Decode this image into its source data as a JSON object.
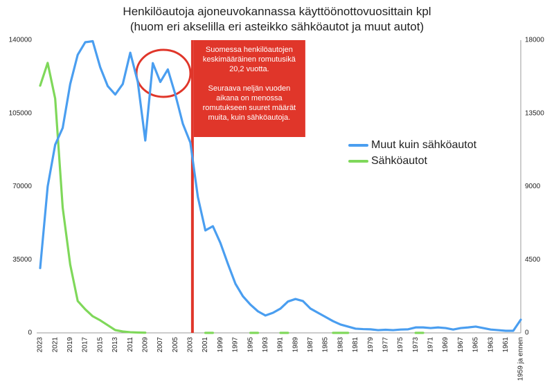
{
  "chart_data": {
    "type": "line",
    "title": [
      "Henkilöautoja ajoneuvokannassa käyttöönottovuosittain kpl",
      "(huom eri akselilla eri asteikko sähköautot ja muut autot)"
    ],
    "categories": [
      "2023",
      null,
      "2021",
      null,
      "2019",
      null,
      "2017",
      null,
      "2015",
      null,
      "2013",
      null,
      "2011",
      null,
      "2009",
      null,
      "2007",
      null,
      "2005",
      null,
      "2003",
      null,
      "2001",
      null,
      "1999",
      null,
      "1997",
      null,
      "1995",
      null,
      "1993",
      null,
      "1991",
      null,
      "1989",
      null,
      "1987",
      null,
      "1985",
      null,
      "1983",
      null,
      "1981",
      null,
      "1979",
      null,
      "1977",
      null,
      "1975",
      null,
      "1973",
      null,
      "1971",
      null,
      "1969",
      null,
      "1967",
      null,
      "1965",
      null,
      "1963",
      null,
      "1961",
      null,
      "1959 ja ennen"
    ],
    "series": [
      {
        "name": "Muut kuin sähköautot",
        "color": "#4a9ef0",
        "axis": "y",
        "values": [
          31000,
          70000,
          90000,
          98000,
          119000,
          133000,
          139000,
          139500,
          127000,
          118000,
          114000,
          119000,
          134000,
          120000,
          92000,
          129000,
          120000,
          126000,
          114000,
          100000,
          91000,
          65000,
          49000,
          51000,
          43000,
          33000,
          23500,
          17500,
          13500,
          10300,
          8300,
          9600,
          11600,
          15000,
          16200,
          15200,
          11600,
          9600,
          7600,
          5600,
          4000,
          3000,
          2000,
          1800,
          1700,
          1300,
          1500,
          1300,
          1600,
          1700,
          2600,
          2600,
          2300,
          2600,
          2300,
          1600,
          2300,
          2600,
          3000,
          2300,
          1600,
          1300,
          1000,
          1000,
          6300
        ]
      },
      {
        "name": "Sähköautot",
        "color": "#7fd85a",
        "axis": "y2",
        "values": [
          15200,
          16600,
          14400,
          7700,
          4200,
          1960,
          1450,
          1020,
          770,
          470,
          170,
          85,
          40,
          20,
          10,
          null,
          null,
          null,
          null,
          null,
          null,
          null,
          0,
          0,
          null,
          null,
          null,
          null,
          0,
          0,
          null,
          null,
          0,
          0,
          null,
          null,
          null,
          null,
          null,
          0,
          0,
          0,
          null,
          null,
          null,
          null,
          null,
          null,
          null,
          null,
          0,
          0,
          null,
          null,
          null,
          null,
          null,
          null,
          null,
          null,
          null,
          null,
          null,
          null,
          null
        ]
      }
    ],
    "ylim": [
      0,
      140000
    ],
    "yticks": [
      0,
      35000,
      70000,
      105000,
      140000
    ],
    "y2lim": [
      0,
      18000
    ],
    "y2ticks": [
      0,
      4500,
      9000,
      13500,
      18000
    ],
    "grid": false,
    "legend": "right",
    "vline_at": "2003",
    "vline_color": "#e0362a",
    "annotation": [
      [
        "Suomessa henkilöautojen",
        "keskimääräinen romutusikä",
        "20,2 vuotta."
      ],
      [
        "Seuraava neljän vuoden",
        "aikana on menossa",
        "romutukseen suuret määrät",
        "muita, kuin sähköautoja."
      ]
    ]
  }
}
